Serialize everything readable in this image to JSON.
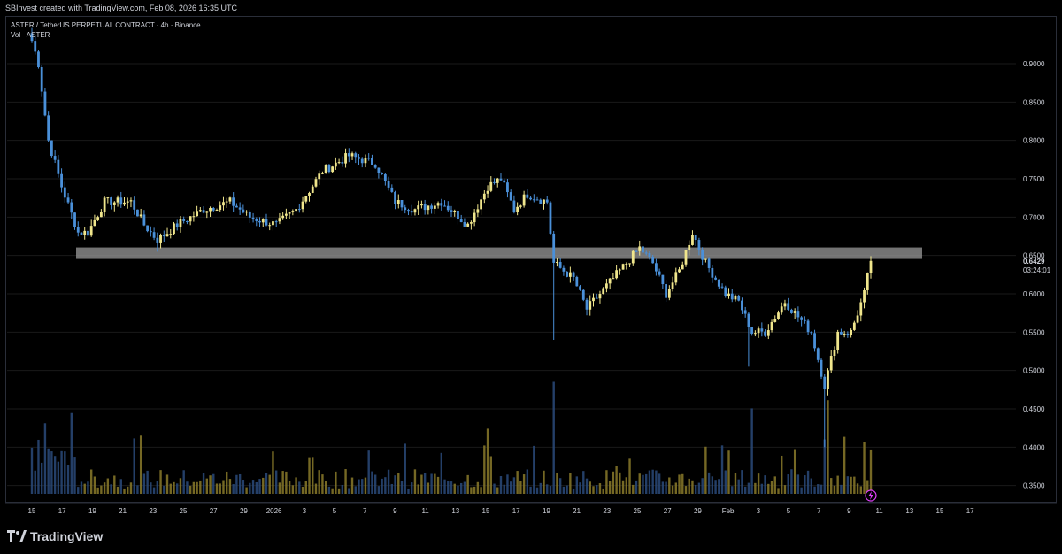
{
  "header": {
    "credit": "SBInvest created with TradingView.com, Feb 08, 2026 16:35 UTC"
  },
  "legend": {
    "symbol_line": "ASTER / TetherUS PERPETUAL CONTRACT · 4h · Binance",
    "volume_line": "Vol · ASTER"
  },
  "price_axis": {
    "ticks": [
      "0.9000",
      "0.8500",
      "0.8000",
      "0.7500",
      "0.7000",
      "0.6500",
      "0.6000",
      "0.5500",
      "0.5000",
      "0.4500",
      "0.4000",
      "0.3500"
    ],
    "current_price": "0.6429",
    "countdown": "03:24:01"
  },
  "time_axis": {
    "ticks": [
      "15",
      "17",
      "19",
      "21",
      "23",
      "25",
      "27",
      "29",
      "2026",
      "3",
      "5",
      "7",
      "9",
      "11",
      "13",
      "15",
      "17",
      "19",
      "21",
      "23",
      "25",
      "27",
      "29",
      "Feb",
      "3",
      "5",
      "7",
      "9",
      "11",
      "13",
      "15",
      "17"
    ]
  },
  "zone": {
    "label": "",
    "low": 0.6455,
    "high": 0.6605
  },
  "colors": {
    "up": "#f0e68c",
    "down": "#4a90d9",
    "vol_up": "#8a7a2a",
    "vol_down": "#2a4a7a",
    "zone": "#9a9a9a",
    "grid": "#1a1a1a"
  },
  "footer": {
    "brand": "TradingView"
  },
  "chart_data": {
    "type": "candlestick",
    "interval": "4h",
    "ylim": [
      0.33,
      0.96
    ],
    "keypoints": [
      {
        "t": 0,
        "p": 0.93
      },
      {
        "t": 2,
        "p": 0.9
      },
      {
        "t": 5,
        "p": 0.8
      },
      {
        "t": 9,
        "p": 0.74
      },
      {
        "t": 14,
        "p": 0.68
      },
      {
        "t": 17,
        "p": 0.68
      },
      {
        "t": 22,
        "p": 0.72
      },
      {
        "t": 30,
        "p": 0.72
      },
      {
        "t": 34,
        "p": 0.69
      },
      {
        "t": 38,
        "p": 0.67
      },
      {
        "t": 44,
        "p": 0.69
      },
      {
        "t": 52,
        "p": 0.71
      },
      {
        "t": 60,
        "p": 0.72
      },
      {
        "t": 66,
        "p": 0.7
      },
      {
        "t": 74,
        "p": 0.69
      },
      {
        "t": 80,
        "p": 0.71
      },
      {
        "t": 88,
        "p": 0.76
      },
      {
        "t": 96,
        "p": 0.78
      },
      {
        "t": 104,
        "p": 0.77
      },
      {
        "t": 110,
        "p": 0.72
      },
      {
        "t": 116,
        "p": 0.71
      },
      {
        "t": 124,
        "p": 0.72
      },
      {
        "t": 132,
        "p": 0.69
      },
      {
        "t": 138,
        "p": 0.74
      },
      {
        "t": 142,
        "p": 0.75
      },
      {
        "t": 146,
        "p": 0.71
      },
      {
        "t": 150,
        "p": 0.73
      },
      {
        "t": 156,
        "p": 0.72
      },
      {
        "t": 158,
        "p": 0.64
      },
      {
        "t": 164,
        "p": 0.62
      },
      {
        "t": 168,
        "p": 0.58
      },
      {
        "t": 174,
        "p": 0.61
      },
      {
        "t": 180,
        "p": 0.64
      },
      {
        "t": 184,
        "p": 0.66
      },
      {
        "t": 188,
        "p": 0.64
      },
      {
        "t": 192,
        "p": 0.6
      },
      {
        "t": 196,
        "p": 0.63
      },
      {
        "t": 200,
        "p": 0.68
      },
      {
        "t": 204,
        "p": 0.64
      },
      {
        "t": 210,
        "p": 0.6
      },
      {
        "t": 214,
        "p": 0.59
      },
      {
        "t": 218,
        "p": 0.55
      },
      {
        "t": 222,
        "p": 0.55
      },
      {
        "t": 228,
        "p": 0.59
      },
      {
        "t": 232,
        "p": 0.57
      },
      {
        "t": 236,
        "p": 0.55
      },
      {
        "t": 240,
        "p": 0.48
      },
      {
        "t": 244,
        "p": 0.55
      },
      {
        "t": 248,
        "p": 0.55
      },
      {
        "t": 252,
        "p": 0.6
      },
      {
        "t": 254,
        "p": 0.6429
      }
    ],
    "volume_spikes": [
      {
        "t": 158,
        "v": 0.55
      },
      {
        "t": 138,
        "v": 0.32
      },
      {
        "t": 241,
        "v": 0.46
      },
      {
        "t": 218,
        "v": 0.42
      },
      {
        "t": 84,
        "v": 0.18
      },
      {
        "t": 246,
        "v": 0.28
      }
    ]
  }
}
